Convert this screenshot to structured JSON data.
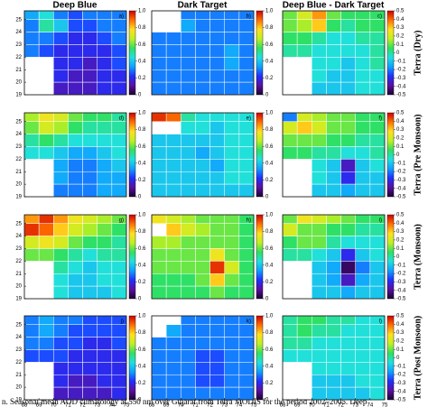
{
  "headers": [
    "Deep Blue",
    "Dark Target",
    "Deep Blue - Dark Target"
  ],
  "row_labels": [
    "Terra (Dry)",
    "Terra (Pre Monsoon)",
    "Terra (Monsoon)",
    "Terra (Post Monsoon)"
  ],
  "caption": "n. Seasonal mean AOD climatology at 550 nm over Gujarat from Terra MODIS for the period 2002–2005. Deep",
  "colormap": [
    "#1a0033",
    "#5a10a0",
    "#2030ff",
    "#10a0ff",
    "#20e0e0",
    "#30e060",
    "#c0f020",
    "#ffe020",
    "#ff7000",
    "#d00000"
  ],
  "chart_data": [
    {
      "type": "heatmap",
      "label": "a)",
      "xlim": [
        68,
        75
      ],
      "ylim": [
        19,
        25.7
      ],
      "yticks": [
        19,
        20,
        21,
        22,
        23,
        24,
        25
      ],
      "clim": [
        0,
        1
      ],
      "cticks": [
        0,
        0.2,
        0.4,
        0.6,
        0.8,
        {
          "value": 1,
          "label": "1.0"
        }
      ],
      "values": [
        [
          0.35,
          0.45,
          0.3,
          0.25,
          0.3,
          0.3,
          0.3
        ],
        [
          0.3,
          0.5,
          0.4,
          0.25,
          0.25,
          0.3,
          0.3
        ],
        [
          0.3,
          0.3,
          0.25,
          0.2,
          0.2,
          0.25,
          0.3
        ],
        [
          0.3,
          0.25,
          0.2,
          0.2,
          0.2,
          0.2,
          0.25
        ],
        [
          null,
          null,
          0.2,
          0.2,
          0.15,
          0.2,
          0.25
        ],
        [
          null,
          null,
          0.2,
          0.15,
          0.15,
          0.2,
          0.2
        ],
        [
          null,
          null,
          0.15,
          0.15,
          0.15,
          0.2,
          0.2
        ]
      ]
    },
    {
      "type": "heatmap",
      "label": "b)",
      "xlim": [
        68,
        75
      ],
      "ylim": [
        19,
        25.7
      ],
      "clim": [
        0,
        1
      ],
      "cticks": [
        0,
        0.2,
        0.4,
        0.6,
        0.8,
        {
          "value": 1,
          "label": "1.0"
        }
      ],
      "values": [
        [
          null,
          null,
          0.3,
          0.3,
          0.3,
          0.3,
          0.3
        ],
        [
          null,
          null,
          0.35,
          0.3,
          0.3,
          0.3,
          0.3
        ],
        [
          0.3,
          0.3,
          0.3,
          0.3,
          0.3,
          0.3,
          0.3
        ],
        [
          0.3,
          0.3,
          0.3,
          0.3,
          0.3,
          0.35,
          0.3
        ],
        [
          0.3,
          0.3,
          0.3,
          0.3,
          0.3,
          0.35,
          0.3
        ],
        [
          0.3,
          0.3,
          0.3,
          0.3,
          0.3,
          0.3,
          0.3
        ],
        [
          0.3,
          0.3,
          0.3,
          0.3,
          0.3,
          0.3,
          0.3
        ]
      ]
    },
    {
      "type": "heatmap",
      "label": "c)",
      "xlim": [
        68,
        75
      ],
      "ylim": [
        19,
        25.7
      ],
      "clim": [
        -0.5,
        0.5
      ],
      "cticks": [
        -0.5,
        -0.4,
        -0.3,
        -0.2,
        -0.1,
        0,
        0.1,
        0.2,
        0.3,
        0.4,
        0.5
      ],
      "values": [
        [
          0.1,
          0.2,
          0.35,
          0.1,
          0.05,
          0.05,
          0.05
        ],
        [
          0.1,
          0.15,
          0.3,
          0.05,
          0,
          0.05,
          0.05
        ],
        [
          0.05,
          0.05,
          0,
          -0.05,
          -0.05,
          0,
          0
        ],
        [
          0,
          0,
          -0.05,
          -0.05,
          -0.05,
          -0.05,
          0
        ],
        [
          null,
          null,
          -0.05,
          -0.05,
          -0.1,
          -0.05,
          0
        ],
        [
          null,
          null,
          -0.05,
          -0.1,
          -0.1,
          -0.05,
          -0.05
        ],
        [
          null,
          null,
          -0.1,
          -0.1,
          -0.1,
          -0.05,
          -0.05
        ]
      ]
    },
    {
      "type": "heatmap",
      "label": "d)",
      "xlim": [
        68,
        75
      ],
      "ylim": [
        19,
        25.7
      ],
      "yticks": [
        19,
        20,
        21,
        22,
        23,
        24,
        25
      ],
      "clim": [
        0,
        1
      ],
      "cticks": [
        0,
        0.2,
        0.4,
        0.6,
        0.8,
        {
          "value": 1,
          "label": "1.0"
        }
      ],
      "values": [
        [
          0.65,
          0.75,
          0.7,
          0.6,
          0.55,
          0.55,
          0.5
        ],
        [
          0.6,
          0.7,
          0.65,
          0.55,
          0.5,
          0.5,
          0.5
        ],
        [
          0.5,
          0.55,
          0.5,
          0.45,
          0.45,
          0.45,
          0.45
        ],
        [
          0.45,
          0.45,
          0.4,
          0.35,
          0.35,
          0.4,
          0.45
        ],
        [
          null,
          null,
          0.35,
          0.3,
          0.3,
          0.35,
          0.4
        ],
        [
          null,
          null,
          0.35,
          0.3,
          0.3,
          0.35,
          0.35
        ],
        [
          null,
          null,
          0.3,
          0.3,
          0.3,
          0.35,
          0.35
        ]
      ]
    },
    {
      "type": "heatmap",
      "label": "e)",
      "xlim": [
        68,
        75
      ],
      "ylim": [
        19,
        25.7
      ],
      "clim": [
        0,
        1
      ],
      "cticks": [
        0,
        0.2,
        0.4,
        0.6,
        0.8,
        {
          "value": 1,
          "label": "1.0"
        }
      ],
      "values": [
        [
          0.95,
          0.9,
          0.5,
          0.45,
          0.45,
          0.45,
          0.45
        ],
        [
          null,
          null,
          0.45,
          0.45,
          0.4,
          0.45,
          0.45
        ],
        [
          0.4,
          0.4,
          0.4,
          0.4,
          0.4,
          0.45,
          0.45
        ],
        [
          0.4,
          0.4,
          0.4,
          0.35,
          0.4,
          0.45,
          0.45
        ],
        [
          0.4,
          0.4,
          0.4,
          0.4,
          0.35,
          0.45,
          0.45
        ],
        [
          0.4,
          0.4,
          0.4,
          0.4,
          0.4,
          0.45,
          0.45
        ],
        [
          0.4,
          0.4,
          0.4,
          0.4,
          0.4,
          0.4,
          0.4
        ]
      ]
    },
    {
      "type": "heatmap",
      "label": "f)",
      "xlim": [
        68,
        75
      ],
      "ylim": [
        19,
        25.7
      ],
      "clim": [
        -0.5,
        0.5
      ],
      "cticks": [
        -0.5,
        -0.4,
        -0.3,
        -0.2,
        -0.1,
        0,
        0.1,
        0.2,
        0.3,
        0.4,
        0.5
      ],
      "values": [
        [
          -0.2,
          0.2,
          0.15,
          0.1,
          0.1,
          0.05,
          0.05
        ],
        [
          0.2,
          0.3,
          0.2,
          0.1,
          0.1,
          0.05,
          0.05
        ],
        [
          0.1,
          0.1,
          0.1,
          0.05,
          0.05,
          0,
          0
        ],
        [
          0.05,
          0.05,
          0,
          0,
          -0.05,
          -0.05,
          0
        ],
        [
          null,
          null,
          -0.05,
          -0.1,
          -0.35,
          -0.1,
          -0.05
        ],
        [
          null,
          null,
          -0.05,
          -0.1,
          -0.3,
          -0.1,
          -0.1
        ],
        [
          null,
          null,
          -0.1,
          -0.1,
          -0.15,
          -0.1,
          -0.1
        ]
      ]
    },
    {
      "type": "heatmap",
      "label": "g)",
      "xlim": [
        68,
        75
      ],
      "ylim": [
        19,
        25.7
      ],
      "yticks": [
        19,
        20,
        21,
        22,
        23,
        24,
        25
      ],
      "clim": [
        0,
        1
      ],
      "cticks": [
        0,
        0.2,
        0.4,
        0.6,
        0.8,
        {
          "value": 1,
          "label": "1.0"
        }
      ],
      "values": [
        [
          0.85,
          0.95,
          0.85,
          0.75,
          0.7,
          0.65,
          0.6
        ],
        [
          0.95,
          0.9,
          0.8,
          0.7,
          0.65,
          0.6,
          0.55
        ],
        [
          0.7,
          0.75,
          0.7,
          0.6,
          0.55,
          0.55,
          0.5
        ],
        [
          0.6,
          0.6,
          0.55,
          0.5,
          0.45,
          0.5,
          0.5
        ],
        [
          null,
          null,
          0.5,
          0.45,
          0.4,
          0.45,
          0.45
        ],
        [
          null,
          null,
          0.45,
          0.4,
          0.4,
          0.45,
          0.45
        ],
        [
          null,
          null,
          0.45,
          0.4,
          0.4,
          0.4,
          0.45
        ]
      ]
    },
    {
      "type": "heatmap",
      "label": "h)",
      "xlim": [
        68,
        75
      ],
      "ylim": [
        19,
        25.7
      ],
      "clim": [
        0,
        1
      ],
      "cticks": [
        0,
        0.2,
        0.4,
        0.6,
        0.8,
        {
          "value": 1,
          "label": "1.0"
        }
      ],
      "values": [
        [
          0.75,
          0.7,
          0.65,
          0.6,
          0.6,
          0.6,
          0.55
        ],
        [
          null,
          0.8,
          0.7,
          0.65,
          0.6,
          0.6,
          0.55
        ],
        [
          0.65,
          0.65,
          0.6,
          0.6,
          0.6,
          0.6,
          0.55
        ],
        [
          0.6,
          0.6,
          0.6,
          0.6,
          0.75,
          0.6,
          0.55
        ],
        [
          0.6,
          0.6,
          0.6,
          0.6,
          0.95,
          0.7,
          0.55
        ],
        [
          0.55,
          0.55,
          0.55,
          0.6,
          0.8,
          0.6,
          0.55
        ],
        [
          0.55,
          0.55,
          0.55,
          0.55,
          0.6,
          0.55,
          0.55
        ]
      ]
    },
    {
      "type": "heatmap",
      "label": "i)",
      "xlim": [
        68,
        75
      ],
      "ylim": [
        19,
        25.7
      ],
      "clim": [
        -0.5,
        0.5
      ],
      "cticks": [
        -0.5,
        -0.4,
        -0.3,
        -0.2,
        -0.1,
        0,
        0.1,
        0.2,
        0.3,
        0.4,
        0.5
      ],
      "values": [
        [
          0.1,
          0.25,
          0.2,
          0.15,
          0.1,
          0.05,
          0.05
        ],
        [
          0.2,
          0.1,
          0.1,
          0.05,
          0.05,
          0,
          0
        ],
        [
          0.05,
          0.1,
          0.1,
          0,
          -0.05,
          -0.05,
          -0.05
        ],
        [
          0,
          0,
          -0.05,
          -0.1,
          -0.3,
          -0.1,
          -0.05
        ],
        [
          null,
          null,
          -0.1,
          -0.15,
          -0.45,
          -0.2,
          -0.1
        ],
        [
          null,
          null,
          -0.1,
          -0.15,
          -0.35,
          -0.15,
          -0.1
        ],
        [
          null,
          null,
          -0.1,
          -0.1,
          -0.15,
          -0.1,
          -0.1
        ]
      ]
    },
    {
      "type": "heatmap",
      "label": "j)",
      "xlim": [
        68,
        75
      ],
      "ylim": [
        19,
        25.7
      ],
      "xticks": [
        68,
        69,
        70,
        71,
        72,
        73,
        74,
        75
      ],
      "yticks": [
        19,
        20,
        21,
        22,
        23,
        24,
        25
      ],
      "clim": [
        0,
        1
      ],
      "cticks": [
        0,
        0.2,
        0.4,
        0.6,
        0.8,
        {
          "value": 1,
          "label": "1.0"
        }
      ],
      "values": [
        [
          0.3,
          0.35,
          0.3,
          0.3,
          0.25,
          0.25,
          0.25
        ],
        [
          0.3,
          0.35,
          0.3,
          0.25,
          0.25,
          0.25,
          0.25
        ],
        [
          0.3,
          0.3,
          0.25,
          0.25,
          0.2,
          0.2,
          0.25
        ],
        [
          0.25,
          0.25,
          0.25,
          0.2,
          0.2,
          0.2,
          0.2
        ],
        [
          null,
          null,
          0.2,
          0.2,
          0.2,
          0.2,
          0.2
        ],
        [
          null,
          null,
          0.2,
          0.15,
          0.15,
          0.2,
          0.2
        ],
        [
          null,
          null,
          0.15,
          0.15,
          0.15,
          0.15,
          0.2
        ]
      ]
    },
    {
      "type": "heatmap",
      "label": "k)",
      "xlim": [
        68,
        75
      ],
      "ylim": [
        19,
        25.7
      ],
      "xticks": [
        68,
        69,
        70,
        71,
        72,
        73,
        74,
        75
      ],
      "clim": [
        0,
        1
      ],
      "cticks": [
        0,
        0.2,
        0.4,
        0.6,
        0.8,
        {
          "value": 1,
          "label": "1.0"
        }
      ],
      "values": [
        [
          null,
          null,
          0.3,
          0.3,
          0.3,
          0.3,
          0.3
        ],
        [
          null,
          0.35,
          0.3,
          0.3,
          0.3,
          0.3,
          0.3
        ],
        [
          0.3,
          0.3,
          0.3,
          0.3,
          0.3,
          0.3,
          0.3
        ],
        [
          0.3,
          0.3,
          0.3,
          0.25,
          0.25,
          0.3,
          0.3
        ],
        [
          0.3,
          0.3,
          0.3,
          0.25,
          0.25,
          0.3,
          0.3
        ],
        [
          0.3,
          0.3,
          0.3,
          0.25,
          0.25,
          0.3,
          0.3
        ],
        [
          0.3,
          0.3,
          0.3,
          0.3,
          0.3,
          0.3,
          0.3
        ]
      ]
    },
    {
      "type": "heatmap",
      "label": "l)",
      "xlim": [
        68,
        75
      ],
      "ylim": [
        19,
        25.7
      ],
      "xticks": [
        68,
        69,
        70,
        71,
        72,
        73,
        74,
        75
      ],
      "clim": [
        -0.5,
        0.5
      ],
      "cticks": [
        -0.5,
        -0.4,
        -0.3,
        -0.2,
        -0.1,
        0,
        0.1,
        0.2,
        0.3,
        0.4,
        0.5
      ],
      "values": [
        [
          0,
          0.05,
          0.05,
          0,
          0,
          -0.05,
          -0.05
        ],
        [
          0,
          0.05,
          0,
          0,
          -0.05,
          -0.05,
          -0.05
        ],
        [
          0,
          0,
          -0.05,
          -0.05,
          -0.05,
          -0.05,
          -0.05
        ],
        [
          -0.05,
          -0.05,
          -0.05,
          -0.05,
          -0.05,
          -0.05,
          -0.05
        ],
        [
          null,
          null,
          -0.05,
          -0.05,
          -0.05,
          -0.05,
          -0.05
        ],
        [
          null,
          null,
          -0.1,
          -0.1,
          -0.1,
          -0.05,
          -0.05
        ],
        [
          null,
          null,
          -0.1,
          -0.1,
          -0.1,
          -0.1,
          -0.05
        ]
      ]
    }
  ]
}
